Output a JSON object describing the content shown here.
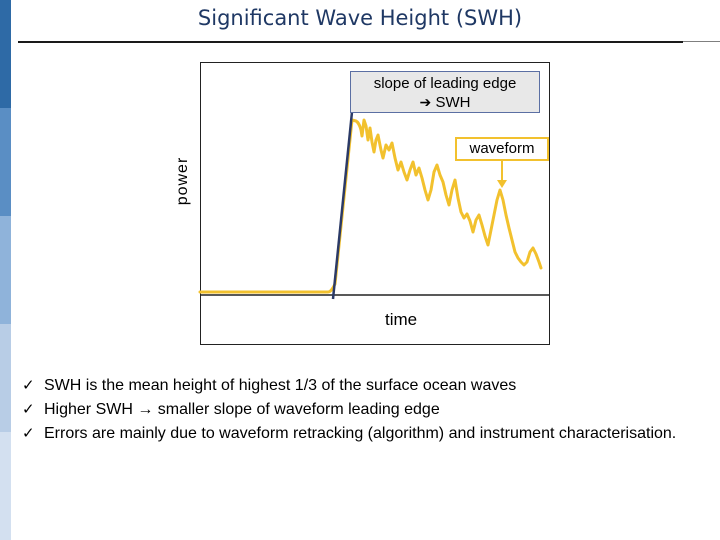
{
  "slide": {
    "title": "Significant Wave Height (SWH)",
    "colors": {
      "title": "#1f3864",
      "waveform": "#f2c12e",
      "slope_line": "#2b3a67",
      "side_bar": [
        "#2e6aa6",
        "#5a8ec4",
        "#8fb3da",
        "#b8cde6",
        "#d3e0f0"
      ]
    }
  },
  "figure": {
    "y_axis_label": "power",
    "x_axis_label": "time",
    "slope_callout": {
      "line1": "slope of leading edge",
      "arrow_icon": "right-arrow-icon",
      "line2": "SWH"
    },
    "waveform_callout": "waveform"
  },
  "bullets": [
    {
      "icon": "checkmark-icon",
      "text": "SWH is the mean height of highest 1/3 of the surface ocean waves"
    },
    {
      "icon": "checkmark-icon",
      "text": "Higher SWH → smaller slope of waveform leading edge"
    },
    {
      "icon": "checkmark-icon",
      "text": "Errors are mainly due to waveform retracking (algorithm) and instrument characterisation."
    }
  ]
}
